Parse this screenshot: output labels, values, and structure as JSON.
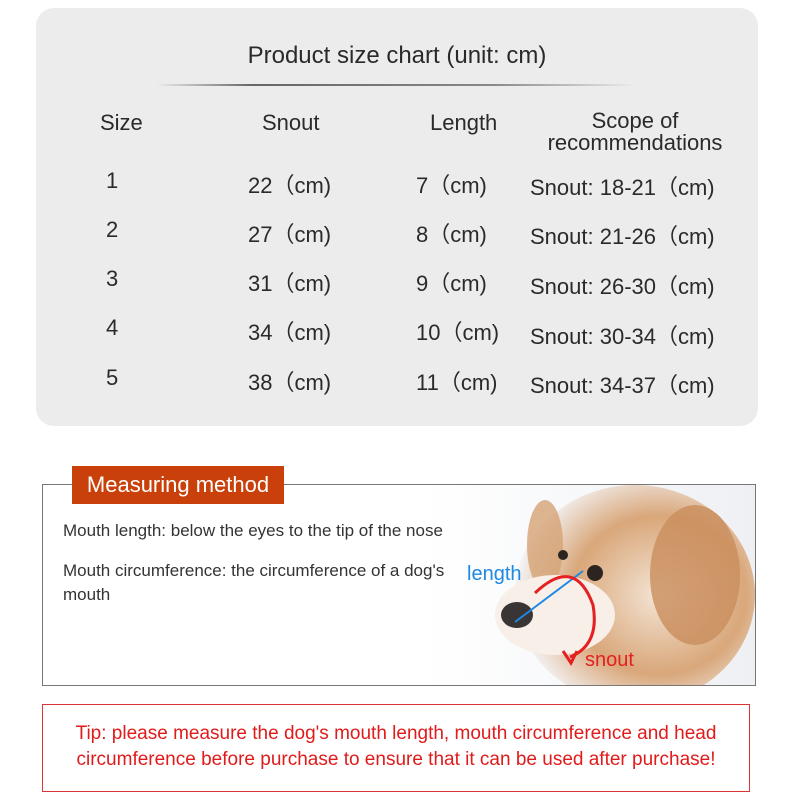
{
  "size_chart": {
    "title": "Product size chart (unit: cm)",
    "headers": [
      "Size",
      "Snout",
      "Length",
      "Scope of recommendations"
    ],
    "rows": [
      {
        "size": "1",
        "snout": "22（cm)",
        "length": "7（cm)",
        "scope": "Snout: 18-21（cm)"
      },
      {
        "size": "2",
        "snout": "27（cm)",
        "length": "8（cm)",
        "scope": "Snout: 21-26（cm)"
      },
      {
        "size": "3",
        "snout": "31（cm)",
        "length": "9（cm)",
        "scope": "Snout: 26-30（cm)"
      },
      {
        "size": "4",
        "snout": "34（cm)",
        "length": "10（cm)",
        "scope": "Snout: 30-34（cm)"
      },
      {
        "size": "5",
        "snout": "38（cm)",
        "length": "11（cm)",
        "scope": "Snout: 34-37（cm)"
      }
    ]
  },
  "measuring": {
    "badge": "Measuring method",
    "line1": "Mouth length: below the eyes to the tip of the nose",
    "line2": "Mouth circumference: the circumference of a dog's mouth",
    "label_length": "length",
    "label_snout": "snout"
  },
  "tip": "Tip: please measure the dog's mouth length, mouth circumference and head circumference before purchase to ensure that it can be used after purchase!",
  "colors": {
    "badge": "#c9400a",
    "tip": "#e01b1b",
    "length_line": "#1e88e5",
    "snout_arc": "#e52020"
  }
}
